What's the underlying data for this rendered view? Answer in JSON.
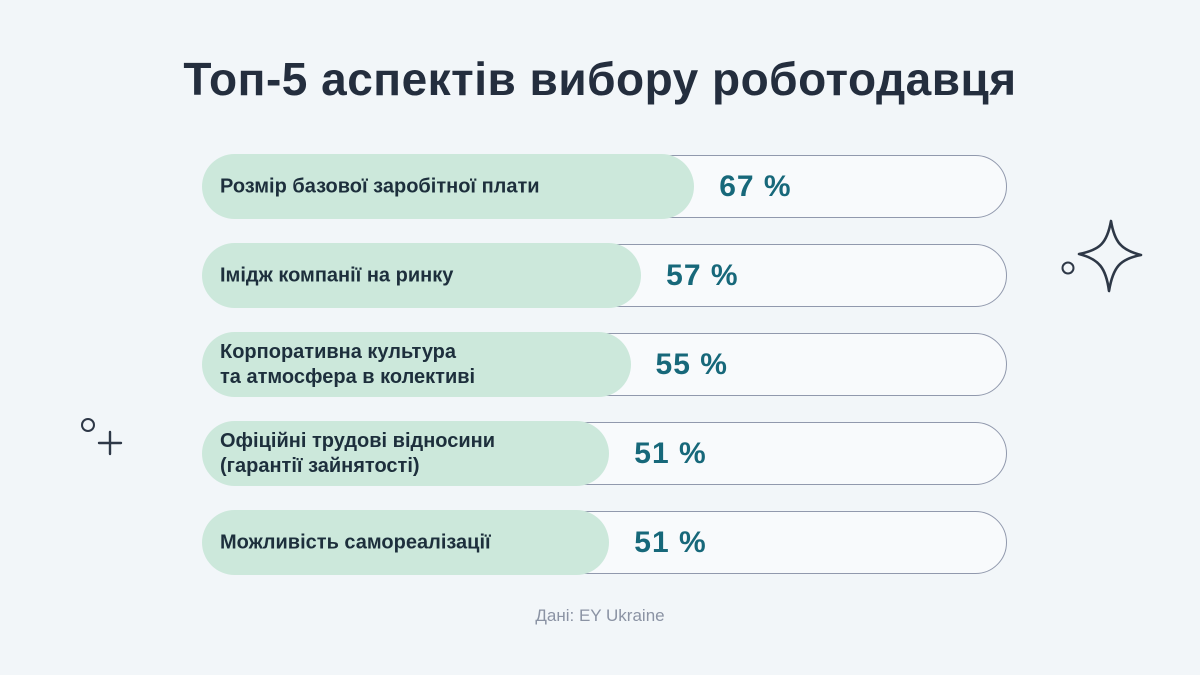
{
  "title": "Топ-5 аспектів вибору роботодавця",
  "source": "Дані: EY Ukraine",
  "bars": [
    {
      "label": "Розмір базової заробітної плати",
      "value": 67,
      "display": "67 %"
    },
    {
      "label": "Імідж компанії на ринку",
      "value": 57,
      "display": "57 %"
    },
    {
      "label": "Корпоративна культура\nта атмосфера в колективі",
      "value": 55,
      "display": "55 %"
    },
    {
      "label": "Офіційні трудові відносини\n(гарантії зайнятості)",
      "value": 51,
      "display": "51 %"
    },
    {
      "label": "Можливість самореалізації",
      "value": 51,
      "display": "51 %"
    }
  ],
  "chart_data": {
    "type": "bar",
    "orientation": "horizontal",
    "title": "Топ-5 аспектів вибору роботодавця",
    "categories": [
      "Розмір базової заробітної плати",
      "Імідж компанії на ринку",
      "Корпоративна культура та атмосфера в колективі",
      "Офіційні трудові відносини (гарантії зайнятості)",
      "Можливість самореалізації"
    ],
    "values": [
      67,
      57,
      55,
      51,
      51
    ],
    "unit": "%",
    "xlim": [
      0,
      100
    ],
    "grid": false,
    "legend": "none",
    "value_labels": "inside-track",
    "source": "Дані: EY Ukraine"
  },
  "colors": {
    "page_background": "#f2f6f9",
    "bar_fill": "#cce8db",
    "track_background": "#f8fafc",
    "track_border": "#9199ad",
    "title_text": "#242e3e",
    "label_text": "#1d2f3c",
    "value_text": "#17687a",
    "source_text": "#8b93a4",
    "decoration": "#2e3847"
  },
  "icons": {
    "left": [
      "small-circle-icon",
      "plus-icon"
    ],
    "right": [
      "small-circle-icon",
      "sparkle-star-icon"
    ]
  }
}
